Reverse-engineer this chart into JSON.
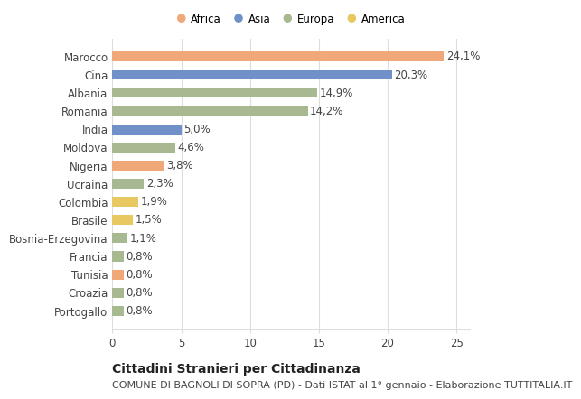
{
  "countries": [
    "Portogallo",
    "Croazia",
    "Tunisia",
    "Francia",
    "Bosnia-Erzegovina",
    "Brasile",
    "Colombia",
    "Ucraina",
    "Nigeria",
    "Moldova",
    "India",
    "Romania",
    "Albania",
    "Cina",
    "Marocco"
  ],
  "values": [
    0.8,
    0.8,
    0.8,
    0.8,
    1.1,
    1.5,
    1.9,
    2.3,
    3.8,
    4.6,
    5.0,
    14.2,
    14.9,
    20.3,
    24.1
  ],
  "continents": [
    "Europa",
    "Europa",
    "Africa",
    "Europa",
    "Europa",
    "America",
    "America",
    "Europa",
    "Africa",
    "Europa",
    "Asia",
    "Europa",
    "Europa",
    "Asia",
    "Africa"
  ],
  "continent_colors": {
    "Africa": "#F0A878",
    "Asia": "#7090C8",
    "Europa": "#A8B890",
    "America": "#E8C860"
  },
  "legend_order": [
    "Africa",
    "Asia",
    "Europa",
    "America"
  ],
  "title": "Cittadini Stranieri per Cittadinanza",
  "subtitle": "COMUNE DI BAGNOLI DI SOPRA (PD) - Dati ISTAT al 1° gennaio - Elaborazione TUTTITALIA.IT",
  "xlim": [
    0,
    26
  ],
  "xticks": [
    0,
    5,
    10,
    15,
    20,
    25
  ],
  "bar_height": 0.55,
  "background_color": "#ffffff",
  "grid_color": "#dddddd",
  "text_color": "#444444",
  "label_fontsize": 8.5,
  "title_fontsize": 10,
  "subtitle_fontsize": 8
}
